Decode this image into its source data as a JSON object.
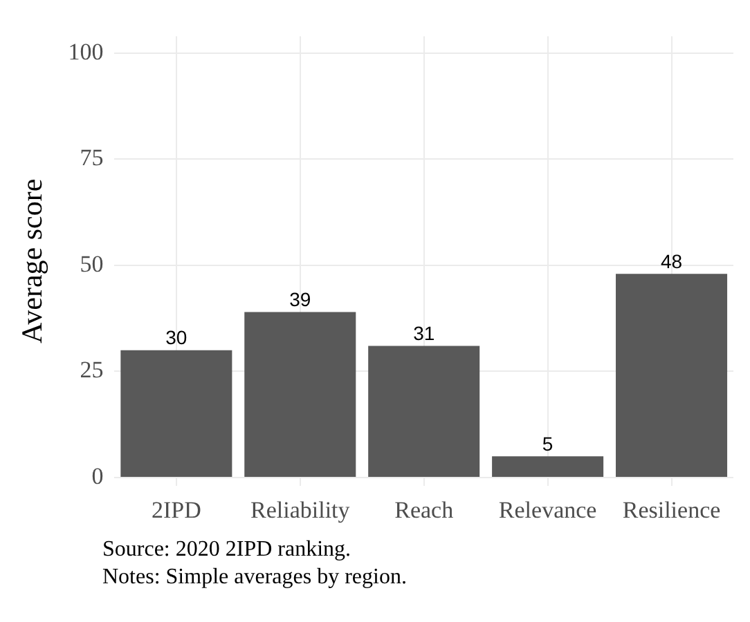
{
  "chart_data": {
    "type": "bar",
    "ylabel": "Average score",
    "categories": [
      "2IPD",
      "Reliability",
      "Reach",
      "Relevance",
      "Resilience"
    ],
    "values": [
      30,
      39,
      31,
      5,
      48
    ],
    "color": "#595959",
    "ylim": [
      -2,
      104
    ],
    "yticks": [
      0,
      25,
      50,
      75,
      100
    ],
    "grid": true,
    "data_labels": true,
    "annotations": [
      "Source: 2020 2IPD ranking.",
      "Notes: Simple averages by region."
    ]
  }
}
